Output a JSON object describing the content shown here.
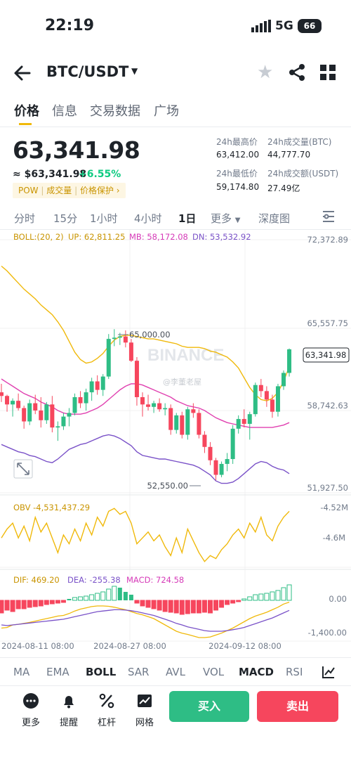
{
  "status": {
    "time": "22:19",
    "network": "5G",
    "battery": "66"
  },
  "header": {
    "pair": "BTC/USDT"
  },
  "tabs": [
    "价格",
    "信息",
    "交易数据",
    "广场"
  ],
  "price": {
    "last": "63,341.98",
    "approx": "≈ $63,341.98",
    "change": "+6.55%",
    "tags": [
      "POW",
      "成交量",
      "价格保护"
    ],
    "tag_arrow": "›"
  },
  "stats": {
    "high_label": "24h最高价",
    "high": "63,412.00",
    "low_label": "24h最低价",
    "low": "59,174.80",
    "vol_btc_label": "24h成交量(BTC)",
    "vol_btc": "44,777.70",
    "vol_usdt_label": "24h成交额(USDT)",
    "vol_usdt": "27.49亿"
  },
  "timeframes": [
    "分时",
    "15分",
    "1小时",
    "4小时",
    "1日",
    "更多",
    "深度图"
  ],
  "timeframe_active": "1日",
  "indicators_bar": [
    "MA",
    "EMA",
    "BOLL",
    "SAR",
    "AVL",
    "VOL",
    "MACD",
    "RSI"
  ],
  "indicators_active": [
    "BOLL",
    "MACD"
  ],
  "chart_labels": {
    "boll": "BOLL:(20, 2)",
    "up": "UP: 62,811.25",
    "mb": "MB: 58,172.08",
    "dn": "DN: 53,532.92",
    "obv": "OBV -4,531,437.29",
    "dif": "DIF: 469.20",
    "dea": "DEA: -255.38",
    "macd": "MACD: 724.58",
    "y_ticks": [
      "72,372.89",
      "65,557.75",
      "58,742.63",
      "51,927.50"
    ],
    "last_price_tag": "63,341.98",
    "high_marker": "65,000.00",
    "low_marker": "52,550.00",
    "obv_ticks": [
      "-4.52M",
      "-4.6M"
    ],
    "macd_ticks": [
      "0.00",
      "-1,400.00"
    ],
    "x_ticks": [
      "2024-08-11 08:00",
      "2024-08-27 08:00",
      "2024-09-12 08:00"
    ],
    "watermark": "BINANCE",
    "weibo": "@李董老屋"
  },
  "chart_data": {
    "type": "candlestick",
    "y_axis": [
      51927.5,
      72372.89
    ],
    "candles": [
      [
        59800,
        60500,
        59000,
        59500
      ],
      [
        59500,
        59600,
        58200,
        58800
      ],
      [
        58800,
        59300,
        57800,
        59100
      ],
      [
        59100,
        59700,
        58300,
        58500
      ],
      [
        58500,
        58700,
        56800,
        57400
      ],
      [
        57400,
        59200,
        57100,
        58900
      ],
      [
        58900,
        59600,
        58000,
        58300
      ],
      [
        58300,
        59400,
        56900,
        57500
      ],
      [
        57500,
        59000,
        57200,
        58800
      ],
      [
        58800,
        59500,
        56500,
        56900
      ],
      [
        56900,
        57400,
        55800,
        57000
      ],
      [
        57000,
        58100,
        56700,
        57800
      ],
      [
        57800,
        58500,
        57000,
        58100
      ],
      [
        58100,
        59700,
        57900,
        59400
      ],
      [
        59400,
        59900,
        58500,
        58900
      ],
      [
        58900,
        60100,
        58300,
        59800
      ],
      [
        59800,
        61000,
        59100,
        60700
      ],
      [
        60700,
        61200,
        59600,
        60000
      ],
      [
        60000,
        61300,
        59500,
        61100
      ],
      [
        61100,
        64600,
        60900,
        64200
      ],
      [
        64200,
        65000,
        63600,
        64300
      ],
      [
        64300,
        64700,
        63700,
        64400
      ],
      [
        64400,
        64900,
        63500,
        63900
      ],
      [
        63900,
        64200,
        62300,
        62400
      ],
      [
        62400,
        62700,
        58700,
        59400
      ],
      [
        59400,
        59800,
        57800,
        58800
      ],
      [
        58800,
        59600,
        58300,
        58600
      ],
      [
        58600,
        59100,
        58100,
        58900
      ],
      [
        58900,
        59300,
        58200,
        58400
      ],
      [
        58400,
        58900,
        57900,
        58500
      ],
      [
        58500,
        58800,
        56300,
        56700
      ],
      [
        56700,
        58100,
        56400,
        57900
      ],
      [
        57900,
        58200,
        56000,
        56300
      ],
      [
        56300,
        58600,
        55900,
        58400
      ],
      [
        58400,
        58900,
        57700,
        58100
      ],
      [
        58100,
        58400,
        56000,
        56300
      ],
      [
        56300,
        56600,
        54800,
        55300
      ],
      [
        55300,
        55700,
        53800,
        54200
      ],
      [
        54200,
        54400,
        52550,
        53000
      ],
      [
        53000,
        54100,
        52800,
        53900
      ],
      [
        53900,
        54800,
        53300,
        54300
      ],
      [
        54300,
        57100,
        53900,
        56800
      ],
      [
        56800,
        57900,
        56400,
        57600
      ],
      [
        57600,
        58400,
        56900,
        57200
      ],
      [
        57200,
        58200,
        55900,
        58000
      ],
      [
        58000,
        60600,
        57800,
        60400
      ],
      [
        60400,
        60900,
        59400,
        59900
      ],
      [
        59900,
        60300,
        58600,
        59200
      ],
      [
        59200,
        59600,
        57700,
        58200
      ],
      [
        58200,
        60500,
        57800,
        60300
      ],
      [
        60300,
        61600,
        60000,
        61400
      ],
      [
        61400,
        63412,
        61100,
        63342
      ]
    ],
    "boll_up": [
      70200,
      69800,
      69300,
      68800,
      68300,
      67900,
      67500,
      67000,
      66600,
      66200,
      65600,
      64900,
      64000,
      63100,
      62500,
      62200,
      62300,
      62600,
      63000,
      63600,
      64100,
      64400,
      64500,
      64500,
      64400,
      64300,
      64200,
      64200,
      64100,
      64000,
      63900,
      63800,
      63600,
      63500,
      63500,
      63500,
      63400,
      63200,
      63100,
      62900,
      62700,
      62300,
      61800,
      61000,
      60200,
      59600,
      59200,
      59100,
      59300,
      59800,
      60700,
      61900
    ],
    "boll_mid": [
      60900,
      60600,
      60300,
      60000,
      59700,
      59500,
      59300,
      59000,
      58800,
      58600,
      58300,
      58100,
      58000,
      58000,
      58000,
      58100,
      58300,
      58500,
      58800,
      59200,
      59600,
      60000,
      60300,
      60500,
      60500,
      60400,
      60200,
      60000,
      59800,
      59600,
      59400,
      59100,
      58900,
      58700,
      58600,
      58500,
      58300,
      58000,
      57700,
      57500,
      57300,
      57200,
      57100,
      57000,
      56900,
      56900,
      56900,
      56900,
      56900,
      57000,
      57100,
      57300
    ],
    "boll_dn": [
      55500,
      55300,
      55100,
      54900,
      54800,
      54600,
      54500,
      54300,
      54100,
      54000,
      54300,
      54700,
      55100,
      55300,
      55500,
      55600,
      55800,
      56000,
      56200,
      56300,
      56200,
      56000,
      55700,
      55400,
      54900,
      54600,
      54500,
      54400,
      54300,
      54300,
      54200,
      54100,
      54000,
      53900,
      53800,
      53600,
      53300,
      53000,
      52500,
      52300,
      52300,
      52400,
      52700,
      53100,
      53500,
      53900,
      54100,
      54000,
      53700,
      53500,
      53400,
      53100
    ],
    "obv_range": [
      -4.6,
      -4.52
    ],
    "macd_range": [
      -1400,
      700
    ]
  }
}
